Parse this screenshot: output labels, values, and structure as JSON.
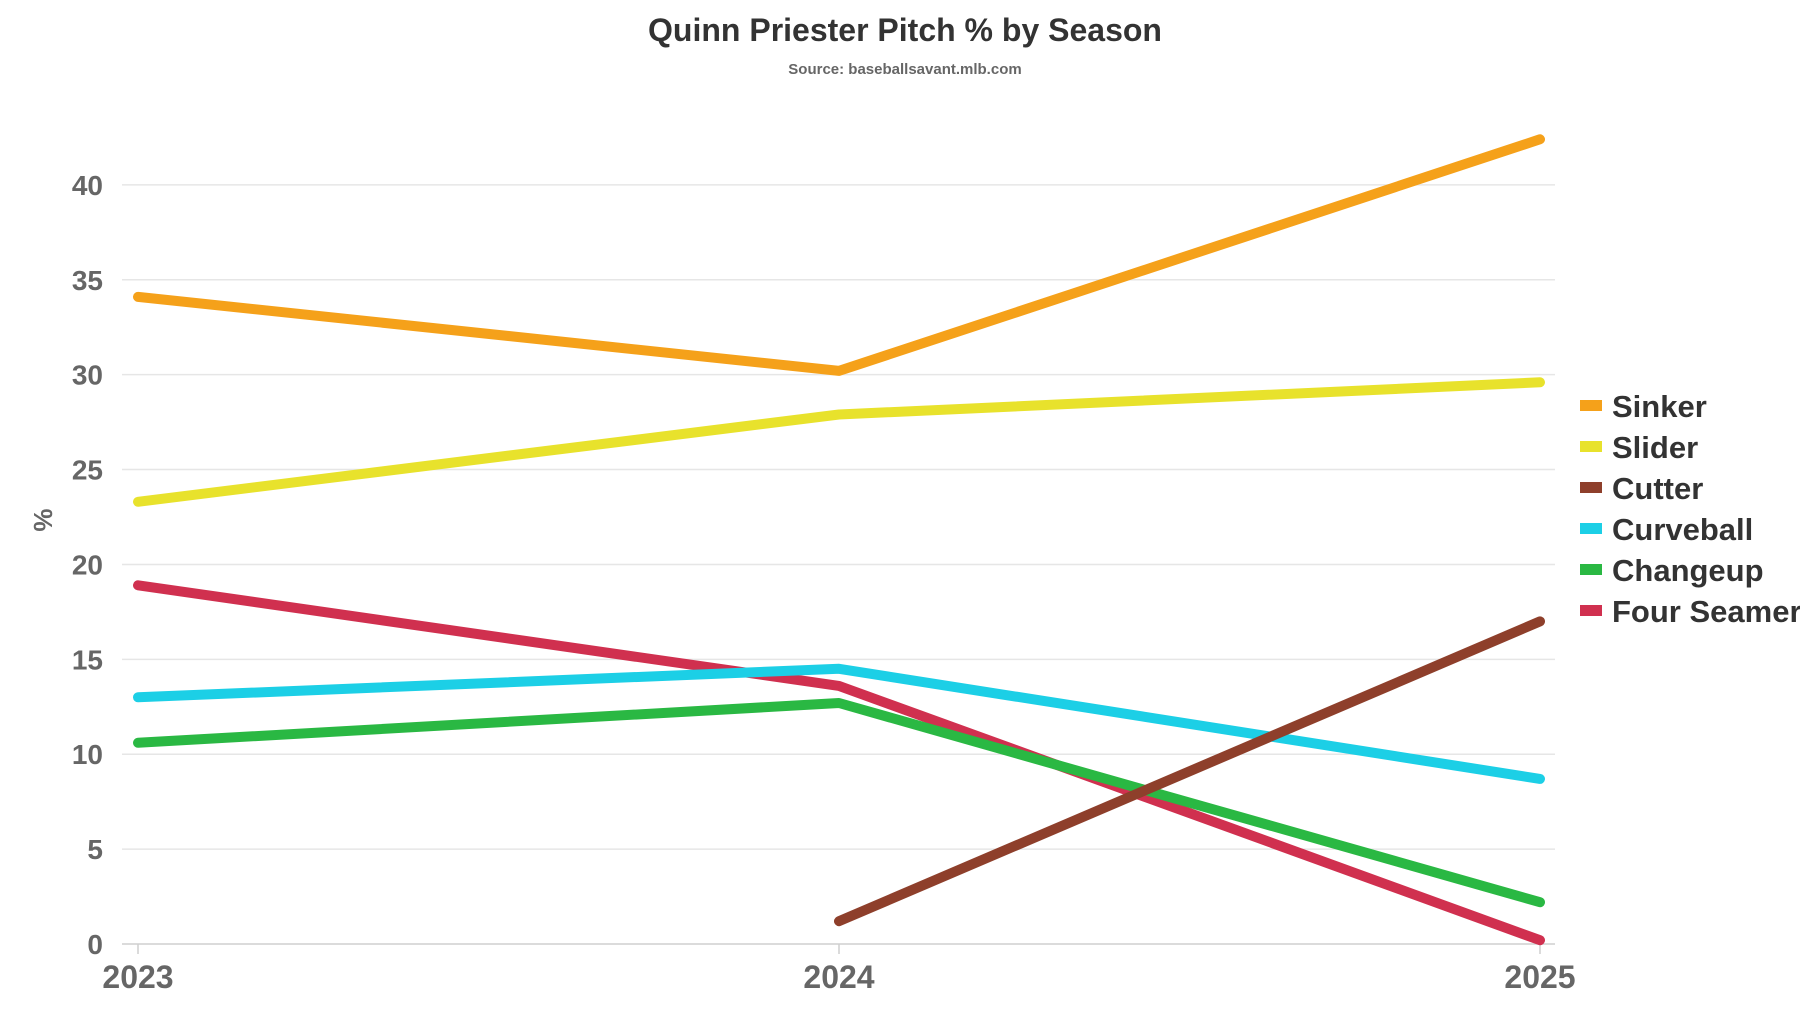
{
  "chart_data": {
    "type": "line",
    "title": "Quinn Priester Pitch % by Season",
    "subtitle": "Source: baseballsavant.mlb.com",
    "xlabel": "",
    "ylabel": "%",
    "x": [
      "2023",
      "2024",
      "2025"
    ],
    "ylim": [
      0,
      45
    ],
    "yticks": [
      "0",
      "5",
      "10",
      "15",
      "20",
      "25",
      "30",
      "35",
      "40"
    ],
    "grid": true,
    "legend_position": "right",
    "series": [
      {
        "name": "Sinker",
        "color": "#f5a11a",
        "values": [
          34.1,
          30.2,
          42.4
        ]
      },
      {
        "name": "Slider",
        "color": "#e8e22c",
        "values": [
          23.3,
          27.9,
          29.6
        ]
      },
      {
        "name": "Cutter",
        "color": "#8e3f2b",
        "values": [
          null,
          1.2,
          17.0
        ]
      },
      {
        "name": "Curveball",
        "color": "#1ccfe6",
        "values": [
          13.0,
          14.5,
          8.7
        ]
      },
      {
        "name": "Changeup",
        "color": "#2ab843",
        "values": [
          10.6,
          12.7,
          2.2
        ]
      },
      {
        "name": "Four Seamer",
        "color": "#d0304f",
        "values": [
          18.9,
          13.6,
          0.2
        ]
      }
    ]
  }
}
